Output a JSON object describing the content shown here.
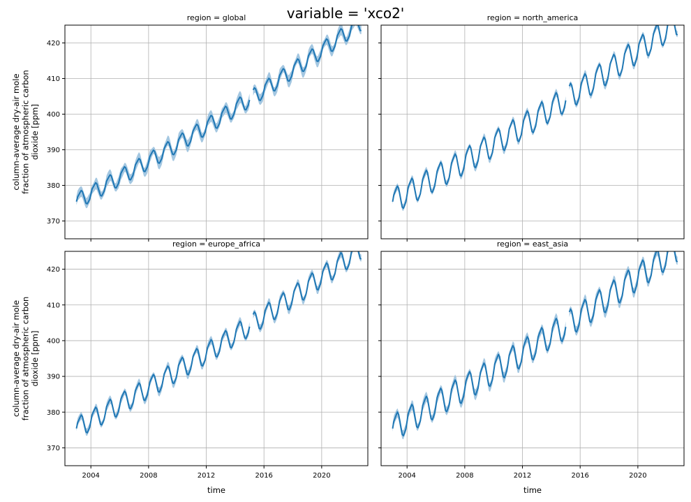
{
  "figure": {
    "suptitle": "variable = 'xco2'",
    "ylabel_lines": [
      "column-average dry-air mole",
      "fraction of atmospheric carbon",
      "dioxide [ppm]"
    ],
    "xlabel": "time"
  },
  "colors": {
    "line": "#1f77b4",
    "band": "#9ac1de",
    "grid": "#b0b0b0",
    "axes": "#000000"
  },
  "chart_data": [
    {
      "type": "line",
      "title": "region = global",
      "xlabel": "",
      "ylabel": "column-average dry-air mole fraction of atmospheric carbon dioxide [ppm]",
      "xlim": [
        2002.2,
        2023.2
      ],
      "ylim": [
        365,
        425
      ],
      "xticks": [
        2004,
        2008,
        2012,
        2016,
        2020
      ],
      "yticks": [
        370,
        380,
        390,
        400,
        410,
        420
      ],
      "grid": true,
      "start_year": 2003.0,
      "end_year": 2022.83,
      "gap": [
        2015.0,
        2015.2
      ],
      "baseline_2003": 375.5,
      "trend_per_year": 2.15,
      "seasonal_amplitude": 2.6,
      "band_halfwidth": 1.4
    },
    {
      "type": "line",
      "title": "region = north_america",
      "xlabel": "",
      "ylabel": "",
      "xlim": [
        2002.2,
        2023.2
      ],
      "ylim": [
        365,
        425
      ],
      "xticks": [
        2004,
        2008,
        2012,
        2016,
        2020
      ],
      "yticks": [
        370,
        380,
        390,
        400,
        410,
        420
      ],
      "grid": true,
      "start_year": 2003.0,
      "end_year": 2022.83,
      "gap": [
        2015.0,
        2015.2
      ],
      "baseline_2003": 375.5,
      "trend_per_year": 2.15,
      "seasonal_amplitude": 4.0,
      "band_halfwidth": 0.9
    },
    {
      "type": "line",
      "title": "region = europe_africa",
      "xlabel": "time",
      "ylabel": "column-average dry-air mole fraction of atmospheric carbon dioxide [ppm]",
      "xlim": [
        2002.2,
        2023.2
      ],
      "ylim": [
        365,
        425
      ],
      "xticks": [
        2004,
        2008,
        2012,
        2016,
        2020
      ],
      "yticks": [
        370,
        380,
        390,
        400,
        410,
        420
      ],
      "grid": true,
      "start_year": 2003.0,
      "end_year": 2022.83,
      "gap": [
        2015.0,
        2015.2
      ],
      "baseline_2003": 375.5,
      "trend_per_year": 2.15,
      "seasonal_amplitude": 3.3,
      "band_halfwidth": 1.0
    },
    {
      "type": "line",
      "title": "region = east_asia",
      "xlabel": "time",
      "ylabel": "",
      "xlim": [
        2002.2,
        2023.2
      ],
      "ylim": [
        365,
        425
      ],
      "xticks": [
        2004,
        2008,
        2012,
        2016,
        2020
      ],
      "yticks": [
        370,
        380,
        390,
        400,
        410,
        420
      ],
      "grid": true,
      "start_year": 2003.0,
      "end_year": 2022.83,
      "gap": [
        2015.0,
        2015.2
      ],
      "baseline_2003": 375.5,
      "trend_per_year": 2.15,
      "seasonal_amplitude": 4.2,
      "band_halfwidth": 1.2
    }
  ]
}
